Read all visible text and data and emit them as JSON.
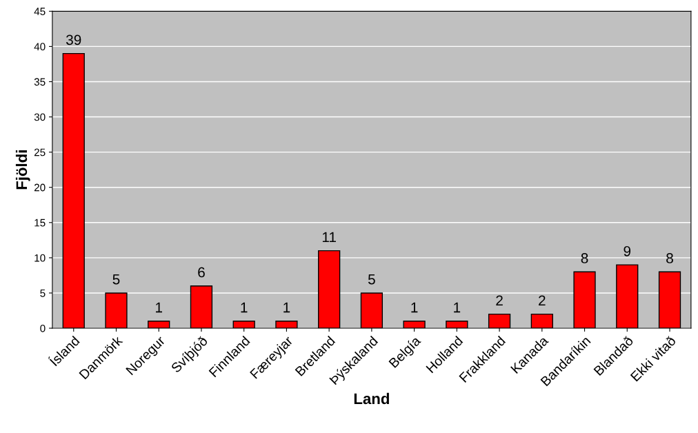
{
  "chart_data": {
    "type": "bar",
    "xlabel": "Land",
    "ylabel": "Fjöldi",
    "categories": [
      "Ísland",
      "Danmörk",
      "Noregur",
      "Svíþjóð",
      "Finnland",
      "Færeyjar",
      "Bretland",
      "Þýskaland",
      "Belgía",
      "Holland",
      "Frakkland",
      "Kanada",
      "Bandaríkin",
      "Blandað",
      "Ekki vitað"
    ],
    "values": [
      39,
      5,
      1,
      6,
      1,
      1,
      11,
      5,
      1,
      1,
      2,
      2,
      8,
      9,
      8
    ],
    "color": "#ff0000",
    "ylim": [
      0,
      45
    ],
    "yticks": [
      0,
      5,
      10,
      15,
      20,
      25,
      30,
      35,
      40,
      45
    ],
    "grid": "y",
    "data_labels": true
  }
}
